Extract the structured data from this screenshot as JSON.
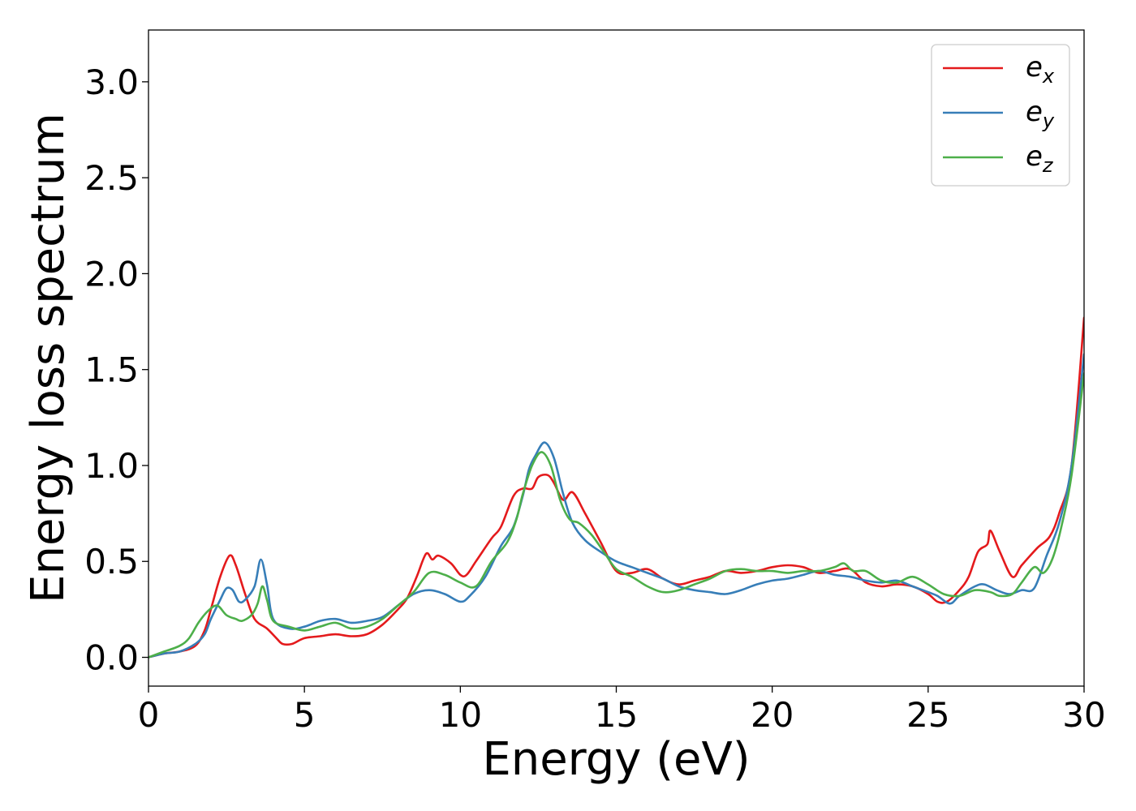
{
  "chart_data": {
    "type": "line",
    "title": "",
    "xlabel": "Energy (eV)",
    "ylabel": "Energy loss spectrum",
    "xlim": [
      0,
      30
    ],
    "ylim": [
      -0.15,
      3.27
    ],
    "xticks": [
      0,
      5,
      10,
      15,
      20,
      25,
      30
    ],
    "xtick_labels": [
      "0",
      "5",
      "10",
      "15",
      "20",
      "25",
      "30"
    ],
    "yticks": [
      0.0,
      0.5,
      1.0,
      1.5,
      2.0,
      2.5,
      3.0
    ],
    "ytick_labels": [
      "0.0",
      "0.5",
      "1.0",
      "1.5",
      "2.0",
      "2.5",
      "3.0"
    ],
    "grid": false,
    "legend_position": "top-right",
    "series": [
      {
        "name": "e",
        "subscript": "x",
        "color": "#e41a1c",
        "points": [
          [
            0,
            0.0
          ],
          [
            0.5,
            0.02
          ],
          [
            1.0,
            0.03
          ],
          [
            1.5,
            0.06
          ],
          [
            1.8,
            0.14
          ],
          [
            2.0,
            0.25
          ],
          [
            2.3,
            0.42
          ],
          [
            2.6,
            0.53
          ],
          [
            2.8,
            0.48
          ],
          [
            3.1,
            0.33
          ],
          [
            3.4,
            0.2
          ],
          [
            3.8,
            0.15
          ],
          [
            4.1,
            0.1
          ],
          [
            4.3,
            0.07
          ],
          [
            4.6,
            0.07
          ],
          [
            5.0,
            0.1
          ],
          [
            5.5,
            0.11
          ],
          [
            6.0,
            0.12
          ],
          [
            6.5,
            0.11
          ],
          [
            7.0,
            0.12
          ],
          [
            7.5,
            0.17
          ],
          [
            8.0,
            0.25
          ],
          [
            8.3,
            0.31
          ],
          [
            8.6,
            0.42
          ],
          [
            8.9,
            0.54
          ],
          [
            9.1,
            0.51
          ],
          [
            9.3,
            0.53
          ],
          [
            9.7,
            0.49
          ],
          [
            10.0,
            0.43
          ],
          [
            10.2,
            0.43
          ],
          [
            10.5,
            0.5
          ],
          [
            11.0,
            0.62
          ],
          [
            11.3,
            0.68
          ],
          [
            11.7,
            0.84
          ],
          [
            12.0,
            0.88
          ],
          [
            12.3,
            0.88
          ],
          [
            12.5,
            0.94
          ],
          [
            12.8,
            0.95
          ],
          [
            13.0,
            0.91
          ],
          [
            13.3,
            0.82
          ],
          [
            13.6,
            0.86
          ],
          [
            14.0,
            0.75
          ],
          [
            14.5,
            0.6
          ],
          [
            15.0,
            0.45
          ],
          [
            15.5,
            0.44
          ],
          [
            16.0,
            0.46
          ],
          [
            16.5,
            0.41
          ],
          [
            17.0,
            0.38
          ],
          [
            17.5,
            0.4
          ],
          [
            18.0,
            0.42
          ],
          [
            18.5,
            0.45
          ],
          [
            19.0,
            0.44
          ],
          [
            19.5,
            0.45
          ],
          [
            20.0,
            0.47
          ],
          [
            20.5,
            0.48
          ],
          [
            21.0,
            0.47
          ],
          [
            21.5,
            0.44
          ],
          [
            22.0,
            0.45
          ],
          [
            22.5,
            0.46
          ],
          [
            23.0,
            0.39
          ],
          [
            23.5,
            0.37
          ],
          [
            24.0,
            0.38
          ],
          [
            24.5,
            0.37
          ],
          [
            25.0,
            0.33
          ],
          [
            25.3,
            0.29
          ],
          [
            25.6,
            0.29
          ],
          [
            26.0,
            0.35
          ],
          [
            26.3,
            0.42
          ],
          [
            26.6,
            0.55
          ],
          [
            26.9,
            0.59
          ],
          [
            27.0,
            0.66
          ],
          [
            27.3,
            0.55
          ],
          [
            27.7,
            0.42
          ],
          [
            28.0,
            0.48
          ],
          [
            28.5,
            0.57
          ],
          [
            28.9,
            0.63
          ],
          [
            29.2,
            0.75
          ],
          [
            29.6,
            1.0
          ],
          [
            30.0,
            1.77
          ]
        ]
      },
      {
        "name": "e",
        "subscript": "y",
        "color": "#377eb8",
        "points": [
          [
            0,
            0.0
          ],
          [
            0.5,
            0.02
          ],
          [
            1.0,
            0.03
          ],
          [
            1.5,
            0.07
          ],
          [
            1.8,
            0.12
          ],
          [
            2.0,
            0.2
          ],
          [
            2.3,
            0.3
          ],
          [
            2.5,
            0.36
          ],
          [
            2.7,
            0.35
          ],
          [
            2.9,
            0.29
          ],
          [
            3.1,
            0.3
          ],
          [
            3.4,
            0.37
          ],
          [
            3.6,
            0.51
          ],
          [
            3.8,
            0.38
          ],
          [
            4.0,
            0.2
          ],
          [
            4.5,
            0.15
          ],
          [
            5.0,
            0.16
          ],
          [
            5.5,
            0.19
          ],
          [
            6.0,
            0.2
          ],
          [
            6.5,
            0.18
          ],
          [
            7.0,
            0.19
          ],
          [
            7.5,
            0.21
          ],
          [
            8.0,
            0.27
          ],
          [
            8.5,
            0.33
          ],
          [
            9.0,
            0.35
          ],
          [
            9.5,
            0.33
          ],
          [
            10.0,
            0.29
          ],
          [
            10.3,
            0.32
          ],
          [
            10.8,
            0.42
          ],
          [
            11.3,
            0.58
          ],
          [
            11.7,
            0.68
          ],
          [
            12.0,
            0.84
          ],
          [
            12.2,
            0.98
          ],
          [
            12.4,
            1.05
          ],
          [
            12.7,
            1.12
          ],
          [
            13.0,
            1.04
          ],
          [
            13.3,
            0.85
          ],
          [
            13.6,
            0.7
          ],
          [
            14.0,
            0.61
          ],
          [
            14.5,
            0.55
          ],
          [
            15.0,
            0.5
          ],
          [
            15.5,
            0.47
          ],
          [
            16.0,
            0.44
          ],
          [
            16.5,
            0.41
          ],
          [
            17.0,
            0.37
          ],
          [
            17.5,
            0.35
          ],
          [
            18.0,
            0.34
          ],
          [
            18.5,
            0.33
          ],
          [
            19.0,
            0.35
          ],
          [
            19.5,
            0.38
          ],
          [
            20.0,
            0.4
          ],
          [
            20.5,
            0.41
          ],
          [
            21.0,
            0.43
          ],
          [
            21.5,
            0.45
          ],
          [
            22.0,
            0.43
          ],
          [
            22.5,
            0.42
          ],
          [
            23.0,
            0.4
          ],
          [
            23.5,
            0.39
          ],
          [
            24.0,
            0.4
          ],
          [
            24.5,
            0.37
          ],
          [
            25.0,
            0.34
          ],
          [
            25.3,
            0.32
          ],
          [
            25.7,
            0.28
          ],
          [
            26.0,
            0.32
          ],
          [
            26.5,
            0.37
          ],
          [
            26.8,
            0.38
          ],
          [
            27.2,
            0.35
          ],
          [
            27.6,
            0.33
          ],
          [
            28.0,
            0.35
          ],
          [
            28.4,
            0.36
          ],
          [
            28.8,
            0.53
          ],
          [
            29.2,
            0.7
          ],
          [
            29.6,
            1.0
          ],
          [
            30.0,
            1.58
          ]
        ]
      },
      {
        "name": "e",
        "subscript": "z",
        "color": "#4daf4a",
        "points": [
          [
            0,
            0.0
          ],
          [
            0.5,
            0.03
          ],
          [
            1.0,
            0.06
          ],
          [
            1.3,
            0.1
          ],
          [
            1.6,
            0.18
          ],
          [
            1.9,
            0.24
          ],
          [
            2.2,
            0.27
          ],
          [
            2.5,
            0.22
          ],
          [
            2.8,
            0.2
          ],
          [
            3.0,
            0.19
          ],
          [
            3.3,
            0.22
          ],
          [
            3.5,
            0.28
          ],
          [
            3.65,
            0.37
          ],
          [
            3.8,
            0.3
          ],
          [
            4.0,
            0.19
          ],
          [
            4.5,
            0.16
          ],
          [
            5.0,
            0.14
          ],
          [
            5.5,
            0.16
          ],
          [
            6.0,
            0.18
          ],
          [
            6.5,
            0.15
          ],
          [
            7.0,
            0.16
          ],
          [
            7.5,
            0.2
          ],
          [
            8.0,
            0.27
          ],
          [
            8.5,
            0.34
          ],
          [
            9.0,
            0.44
          ],
          [
            9.5,
            0.43
          ],
          [
            10.0,
            0.39
          ],
          [
            10.5,
            0.37
          ],
          [
            11.0,
            0.5
          ],
          [
            11.5,
            0.6
          ],
          [
            11.8,
            0.72
          ],
          [
            12.0,
            0.85
          ],
          [
            12.3,
            1.0
          ],
          [
            12.6,
            1.07
          ],
          [
            12.9,
            1.0
          ],
          [
            13.2,
            0.82
          ],
          [
            13.5,
            0.72
          ],
          [
            13.8,
            0.7
          ],
          [
            14.2,
            0.64
          ],
          [
            14.6,
            0.55
          ],
          [
            15.0,
            0.46
          ],
          [
            15.5,
            0.42
          ],
          [
            16.0,
            0.37
          ],
          [
            16.5,
            0.34
          ],
          [
            17.0,
            0.35
          ],
          [
            17.5,
            0.38
          ],
          [
            18.0,
            0.41
          ],
          [
            18.5,
            0.45
          ],
          [
            19.0,
            0.46
          ],
          [
            19.5,
            0.45
          ],
          [
            20.0,
            0.45
          ],
          [
            20.5,
            0.44
          ],
          [
            21.0,
            0.45
          ],
          [
            21.5,
            0.45
          ],
          [
            22.0,
            0.47
          ],
          [
            22.3,
            0.49
          ],
          [
            22.6,
            0.45
          ],
          [
            23.0,
            0.45
          ],
          [
            23.5,
            0.4
          ],
          [
            24.0,
            0.39
          ],
          [
            24.5,
            0.42
          ],
          [
            25.0,
            0.38
          ],
          [
            25.5,
            0.33
          ],
          [
            26.0,
            0.32
          ],
          [
            26.5,
            0.35
          ],
          [
            27.0,
            0.34
          ],
          [
            27.3,
            0.32
          ],
          [
            27.7,
            0.33
          ],
          [
            28.0,
            0.39
          ],
          [
            28.4,
            0.47
          ],
          [
            28.7,
            0.44
          ],
          [
            29.0,
            0.52
          ],
          [
            29.3,
            0.7
          ],
          [
            29.6,
            0.95
          ],
          [
            30.0,
            1.48
          ]
        ]
      }
    ]
  }
}
